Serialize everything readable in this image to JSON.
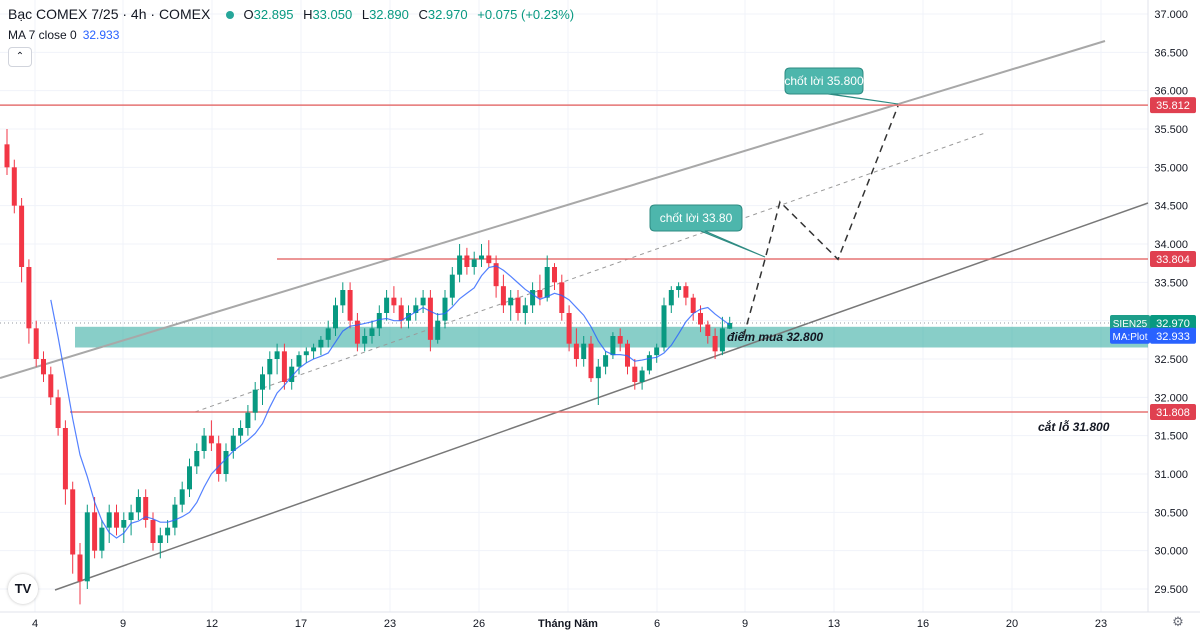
{
  "header": {
    "symbol_title": "Bạc COMEX 7/25 · 4h · COMEX",
    "open_label": "O",
    "open": "32.895",
    "high_label": "H",
    "high": "33.050",
    "low_label": "L",
    "low": "32.890",
    "close_label": "C",
    "close": "32.970",
    "change": "+0.075 (+0.23%)",
    "ma_label": "MA 7 close 0",
    "ma_value": "32.933"
  },
  "colors": {
    "up": "#089981",
    "down": "#f23645",
    "ma": "#2962ff",
    "zone": "#26a69a",
    "red_line": "#e57373",
    "channel": "#8a8a8a",
    "callout": "#4db6ac"
  },
  "icons": {
    "collapse": "chevron-up-icon",
    "logo": "tradingview-logo-icon",
    "settings": "gear-icon"
  },
  "chart_data": {
    "type": "candlestick",
    "timeframe": "4h",
    "x_tick_labels": [
      "4",
      "9",
      "12",
      "17",
      "23",
      "26",
      "Tháng Năm",
      "6",
      "9",
      "13",
      "16",
      "20",
      "23"
    ],
    "y_ticks": [
      "37.000",
      "36.500",
      "36.000",
      "35.500",
      "35.000",
      "34.500",
      "34.000",
      "33.500",
      "33.000",
      "32.500",
      "32.000",
      "31.500",
      "31.000",
      "30.500",
      "30.000",
      "29.500"
    ],
    "ylim": [
      29.3,
      37.1
    ],
    "candles": [
      [
        35.3,
        35.5,
        34.9,
        35.0
      ],
      [
        35.0,
        35.1,
        34.4,
        34.5
      ],
      [
        34.5,
        34.6,
        33.5,
        33.7
      ],
      [
        33.7,
        33.8,
        32.7,
        32.9
      ],
      [
        32.9,
        33.0,
        32.4,
        32.5
      ],
      [
        32.5,
        32.6,
        32.2,
        32.3
      ],
      [
        32.3,
        32.4,
        31.9,
        32.0
      ],
      [
        32.0,
        32.1,
        31.5,
        31.6
      ],
      [
        31.6,
        31.7,
        30.6,
        30.8
      ],
      [
        30.8,
        30.9,
        29.7,
        29.95
      ],
      [
        29.95,
        30.1,
        29.3,
        29.6
      ],
      [
        29.6,
        30.6,
        29.5,
        30.5
      ],
      [
        30.5,
        30.7,
        29.9,
        30.0
      ],
      [
        30.0,
        30.4,
        29.9,
        30.3
      ],
      [
        30.3,
        30.6,
        30.1,
        30.5
      ],
      [
        30.5,
        30.6,
        30.2,
        30.3
      ],
      [
        30.3,
        30.5,
        30.1,
        30.4
      ],
      [
        30.4,
        30.6,
        30.2,
        30.5
      ],
      [
        30.5,
        30.8,
        30.4,
        30.7
      ],
      [
        30.7,
        30.8,
        30.3,
        30.4
      ],
      [
        30.4,
        30.5,
        30.0,
        30.1
      ],
      [
        30.1,
        30.3,
        29.9,
        30.2
      ],
      [
        30.2,
        30.4,
        30.1,
        30.3
      ],
      [
        30.3,
        30.7,
        30.2,
        30.6
      ],
      [
        30.6,
        30.9,
        30.5,
        30.8
      ],
      [
        30.8,
        31.2,
        30.7,
        31.1
      ],
      [
        31.1,
        31.4,
        31.0,
        31.3
      ],
      [
        31.3,
        31.6,
        31.2,
        31.5
      ],
      [
        31.5,
        31.7,
        31.3,
        31.4
      ],
      [
        31.4,
        31.5,
        30.9,
        31.0
      ],
      [
        31.0,
        31.4,
        30.9,
        31.3
      ],
      [
        31.3,
        31.6,
        31.2,
        31.5
      ],
      [
        31.5,
        31.7,
        31.4,
        31.6
      ],
      [
        31.6,
        31.9,
        31.5,
        31.8
      ],
      [
        31.8,
        32.2,
        31.7,
        32.1
      ],
      [
        32.1,
        32.4,
        31.9,
        32.3
      ],
      [
        32.3,
        32.6,
        32.1,
        32.5
      ],
      [
        32.5,
        32.7,
        32.3,
        32.6
      ],
      [
        32.6,
        32.7,
        32.1,
        32.2
      ],
      [
        32.2,
        32.5,
        32.1,
        32.4
      ],
      [
        32.4,
        32.6,
        32.3,
        32.55
      ],
      [
        32.55,
        32.65,
        32.45,
        32.6
      ],
      [
        32.6,
        32.7,
        32.5,
        32.65
      ],
      [
        32.65,
        32.8,
        32.55,
        32.75
      ],
      [
        32.75,
        33.0,
        32.65,
        32.9
      ],
      [
        32.9,
        33.3,
        32.8,
        33.2
      ],
      [
        33.2,
        33.5,
        33.1,
        33.4
      ],
      [
        33.4,
        33.5,
        32.9,
        33.0
      ],
      [
        33.0,
        33.1,
        32.6,
        32.7
      ],
      [
        32.7,
        32.9,
        32.6,
        32.8
      ],
      [
        32.8,
        33.0,
        32.7,
        32.9
      ],
      [
        32.9,
        33.2,
        32.8,
        33.1
      ],
      [
        33.1,
        33.4,
        33.0,
        33.3
      ],
      [
        33.3,
        33.45,
        33.1,
        33.2
      ],
      [
        33.2,
        33.3,
        32.9,
        33.0
      ],
      [
        33.0,
        33.2,
        32.9,
        33.1
      ],
      [
        33.1,
        33.3,
        33.0,
        33.2
      ],
      [
        33.2,
        33.4,
        33.1,
        33.3
      ],
      [
        33.3,
        33.4,
        32.6,
        32.75
      ],
      [
        32.75,
        33.1,
        32.7,
        33.0
      ],
      [
        33.0,
        33.4,
        32.9,
        33.3
      ],
      [
        33.3,
        33.7,
        33.2,
        33.6
      ],
      [
        33.6,
        34.0,
        33.5,
        33.85
      ],
      [
        33.85,
        33.95,
        33.6,
        33.7
      ],
      [
        33.7,
        33.9,
        33.6,
        33.8
      ],
      [
        33.8,
        34.0,
        33.7,
        33.85
      ],
      [
        33.85,
        34.05,
        33.7,
        33.75
      ],
      [
        33.75,
        33.85,
        33.3,
        33.45
      ],
      [
        33.45,
        33.6,
        33.1,
        33.2
      ],
      [
        33.2,
        33.4,
        33.0,
        33.3
      ],
      [
        33.3,
        33.4,
        33.0,
        33.1
      ],
      [
        33.1,
        33.3,
        32.95,
        33.2
      ],
      [
        33.2,
        33.5,
        33.1,
        33.4
      ],
      [
        33.4,
        33.6,
        33.2,
        33.3
      ],
      [
        33.3,
        33.85,
        33.25,
        33.7
      ],
      [
        33.7,
        33.75,
        33.4,
        33.5
      ],
      [
        33.5,
        33.6,
        33.0,
        33.1
      ],
      [
        33.1,
        33.2,
        32.6,
        32.7
      ],
      [
        32.7,
        32.9,
        32.4,
        32.5
      ],
      [
        32.5,
        32.8,
        32.4,
        32.7
      ],
      [
        32.7,
        32.8,
        32.2,
        32.25
      ],
      [
        32.25,
        32.5,
        31.9,
        32.4
      ],
      [
        32.4,
        32.6,
        32.3,
        32.55
      ],
      [
        32.55,
        32.85,
        32.5,
        32.8
      ],
      [
        32.8,
        32.9,
        32.6,
        32.7
      ],
      [
        32.7,
        32.75,
        32.3,
        32.4
      ],
      [
        32.4,
        32.5,
        32.1,
        32.2
      ],
      [
        32.2,
        32.4,
        32.1,
        32.35
      ],
      [
        32.35,
        32.6,
        32.3,
        32.55
      ],
      [
        32.55,
        32.7,
        32.45,
        32.65
      ],
      [
        32.65,
        33.3,
        32.6,
        33.2
      ],
      [
        33.2,
        33.45,
        33.1,
        33.4
      ],
      [
        33.4,
        33.5,
        33.3,
        33.45
      ],
      [
        33.45,
        33.5,
        33.2,
        33.3
      ],
      [
        33.3,
        33.35,
        33.0,
        33.1
      ],
      [
        33.1,
        33.2,
        32.85,
        32.95
      ],
      [
        32.95,
        33.0,
        32.7,
        32.8
      ],
      [
        32.8,
        32.9,
        32.5,
        32.6
      ],
      [
        32.6,
        33.05,
        32.55,
        32.9
      ],
      [
        32.895,
        33.05,
        32.89,
        32.97
      ]
    ],
    "horizontal_lines": [
      {
        "price": 35.812,
        "label": "35.812"
      },
      {
        "price": 33.804,
        "label": "33.804"
      },
      {
        "price": 31.808,
        "label": "31.808"
      }
    ],
    "zone": {
      "low": 32.65,
      "high": 32.92
    },
    "price_tags": [
      {
        "text": "SIEN25",
        "value": "32.970"
      },
      {
        "text": "MA:Plot",
        "value": "32.933"
      }
    ],
    "annotations": {
      "callout_upper": "chốt lời 35.800",
      "callout_lower": "chốt lời 33.80",
      "buy_label": "điểm mua 32.800",
      "stop_label": "cắt lỗ 31.800"
    },
    "projection_path": [
      [
        32.8,
        0
      ],
      [
        33.8,
        1
      ],
      [
        34.55,
        2
      ],
      [
        33.8,
        3
      ],
      [
        35.8,
        4
      ]
    ]
  }
}
